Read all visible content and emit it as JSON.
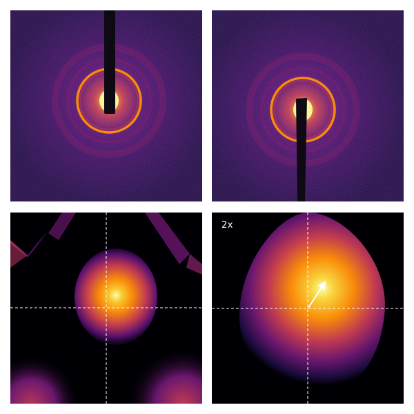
{
  "colors": {
    "colormap": [
      "#000004",
      "#1c0c3e",
      "#56106e",
      "#8c2369",
      "#c03a51",
      "#e8602f",
      "#f98c09",
      "#f8c932",
      "#fcffa4"
    ],
    "crosshair": "#ffffff",
    "page_background": "#ffffff"
  },
  "panels": {
    "top_left": {
      "kind": "diffraction-pattern",
      "beamstop": "from-top"
    },
    "top_right": {
      "kind": "diffraction-pattern",
      "beamstop": "from-bottom"
    },
    "bottom_left": {
      "kind": "zoomed-intensity-map",
      "crosshair": "dashed"
    },
    "bottom_right": {
      "kind": "zoomed-intensity-map",
      "crosshair": "dashed",
      "magnification_label": "2x",
      "arrow": true
    }
  }
}
